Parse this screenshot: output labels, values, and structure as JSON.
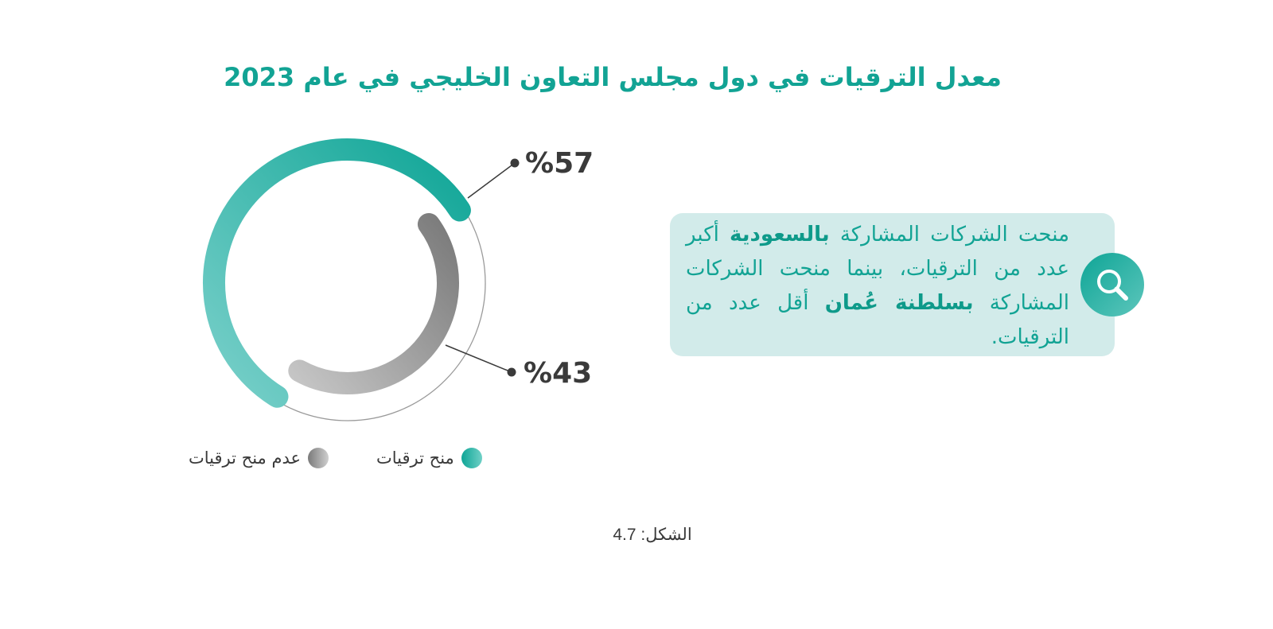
{
  "title": "معدل الترقيات في دول مجلس التعاون الخليجي في عام 2023",
  "chart_data": {
    "type": "pie",
    "title": "معدل الترقيات في دول مجلس التعاون الخليجي في عام 2023",
    "categories": [
      "منح ترقيات",
      "عدم منح ترقيات"
    ],
    "values": [
      57,
      43
    ],
    "value_labels": [
      "%57",
      "%43"
    ],
    "colors": [
      "#0ea596",
      "#8a8a8a"
    ],
    "legend_position": "bottom"
  },
  "legend": {
    "items": [
      {
        "label": "منح ترقيات",
        "color": "#0ea596"
      },
      {
        "label": "عدم منح ترقيات",
        "color": "#8a8a8a"
      }
    ]
  },
  "insight": {
    "icon": "search-icon",
    "before_1": "منحت الشركات المشاركة ",
    "country_1": "بالسعودية",
    "after_1": " أكبر عدد من الترقيات، بينما منحت الشركات المشاركة ",
    "country_2": "بسلطنة عُمان",
    "after_2": " أقل عدد من الترقيات."
  },
  "caption": "الشكل: 4.7",
  "colors": {
    "accent": "#12a394",
    "text": "#3a3a3a",
    "insight_bg": "#d2ebea"
  }
}
